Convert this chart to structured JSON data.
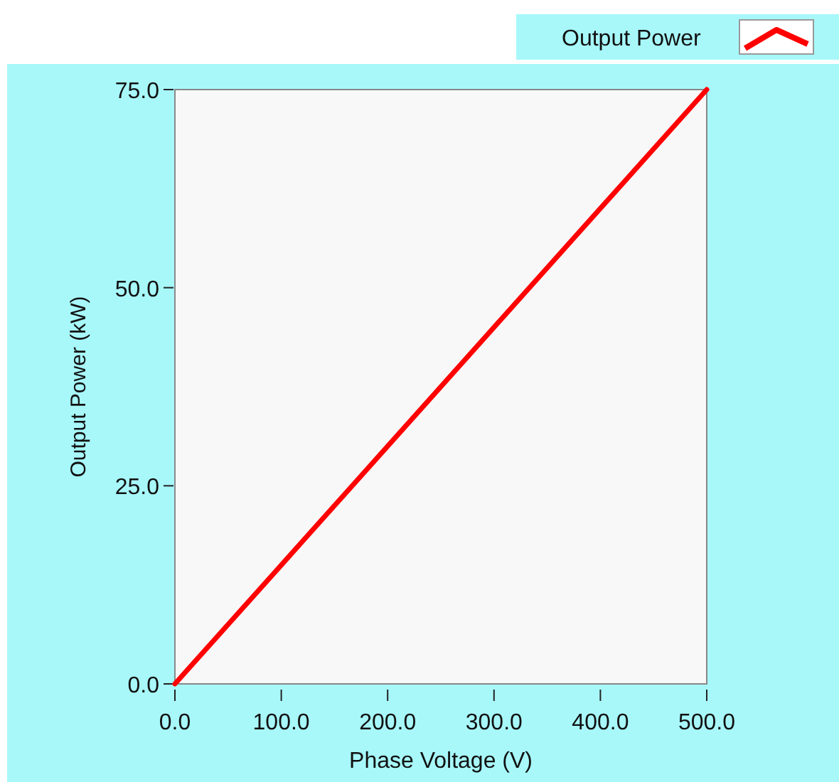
{
  "chart_data": {
    "type": "line",
    "xlabel": "Phase Voltage (V)",
    "ylabel": "Output Power (kW)",
    "x": [
      0,
      100,
      200,
      300,
      400,
      500
    ],
    "series": [
      {
        "name": "Output Power",
        "color": "#ff0000",
        "values": [
          0,
          15,
          30,
          45,
          60,
          75
        ]
      }
    ],
    "xlim": [
      0,
      500
    ],
    "ylim": [
      0,
      75
    ],
    "xticks": [
      {
        "value": 0,
        "label": "0.0"
      },
      {
        "value": 100,
        "label": "100.0"
      },
      {
        "value": 200,
        "label": "200.0"
      },
      {
        "value": 300,
        "label": "300.0"
      },
      {
        "value": 400,
        "label": "400.0"
      },
      {
        "value": 500,
        "label": "500.0"
      }
    ],
    "yticks": [
      {
        "value": 0,
        "label": "0.0"
      },
      {
        "value": 25,
        "label": "25.0"
      },
      {
        "value": 50,
        "label": "50.0"
      },
      {
        "value": 75,
        "label": "75.0"
      }
    ],
    "grid": false,
    "legend": "top right",
    "marker": "none",
    "line_style": "solid"
  }
}
